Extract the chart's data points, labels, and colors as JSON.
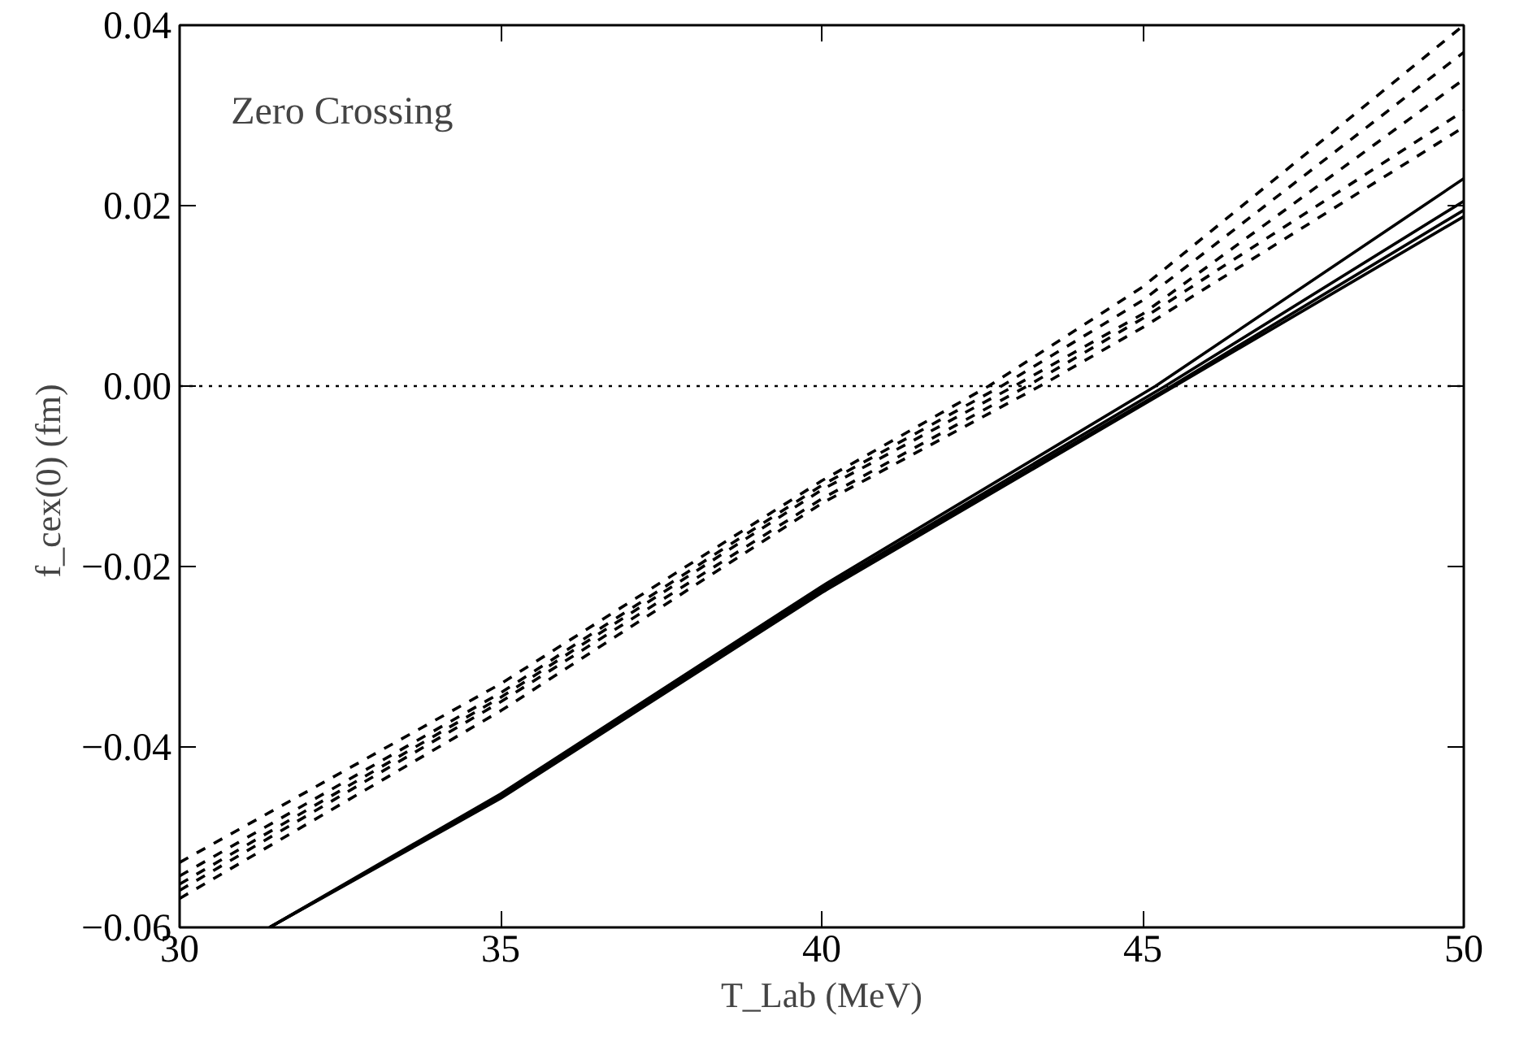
{
  "chart_data": {
    "type": "line",
    "xlabel": "T_Lab (MeV)",
    "ylabel": "f_cex(0)  (fm)",
    "annotations": [
      "Zero Crossing"
    ],
    "xlim": [
      30,
      50
    ],
    "ylim": [
      -0.06,
      0.04
    ],
    "xticks": [
      30,
      35,
      40,
      45,
      50
    ],
    "yticks": [
      {
        "value": -0.06,
        "label": "−0.06"
      },
      {
        "value": -0.04,
        "label": "−0.04"
      },
      {
        "value": -0.02,
        "label": "−0.02"
      },
      {
        "value": 0,
        "label": "0.00"
      },
      {
        "value": 0.02,
        "label": "0.02"
      },
      {
        "value": 0.04,
        "label": "0.04"
      }
    ],
    "grid": false,
    "ref_lines": [
      {
        "axis": "y",
        "value": 0,
        "label": null,
        "line_style": "dotted",
        "color": "#000000"
      }
    ],
    "series": [
      {
        "color": "#000000",
        "line_style": "dashed",
        "x": [
          30,
          35,
          40,
          42.6,
          45,
          50
        ],
        "values": [
          -0.0528,
          -0.033,
          -0.0105,
          0,
          0.011,
          0.04
        ]
      },
      {
        "color": "#000000",
        "line_style": "dashed",
        "x": [
          30,
          35,
          40,
          42.8,
          45,
          50
        ],
        "values": [
          -0.0543,
          -0.034,
          -0.011,
          0,
          0.0095,
          0.037
        ]
      },
      {
        "color": "#000000",
        "line_style": "dashed",
        "x": [
          30,
          35,
          40,
          43.0,
          45,
          50
        ],
        "values": [
          -0.0552,
          -0.0345,
          -0.0115,
          0,
          0.008,
          0.034
        ]
      },
      {
        "color": "#000000",
        "line_style": "dashed",
        "x": [
          30,
          35,
          40,
          43.2,
          45,
          50
        ],
        "values": [
          -0.0559,
          -0.035,
          -0.0125,
          0,
          0.0075,
          0.0305
        ]
      },
      {
        "color": "#000000",
        "line_style": "dashed",
        "x": [
          30,
          35,
          40,
          43.4,
          45,
          50
        ],
        "values": [
          -0.0568,
          -0.036,
          -0.013,
          0,
          0.0065,
          0.0287
        ]
      },
      {
        "color": "#000000",
        "line_style": "solid",
        "x": [
          31.4,
          35,
          40,
          45.2,
          50
        ],
        "values": [
          -0.06,
          -0.0452,
          -0.0222,
          0,
          0.023
        ]
      },
      {
        "color": "#000000",
        "line_style": "solid",
        "x": [
          31.4,
          35,
          40,
          45.35,
          50
        ],
        "values": [
          -0.06,
          -0.0454,
          -0.0225,
          0,
          0.0205
        ]
      },
      {
        "color": "#000000",
        "line_style": "solid",
        "x": [
          31.4,
          35,
          40,
          45.45,
          50
        ],
        "values": [
          -0.06,
          -0.0455,
          -0.0227,
          0,
          0.0195
        ]
      },
      {
        "color": "#000000",
        "line_style": "solid",
        "x": [
          31.4,
          35,
          40,
          45.5,
          50
        ],
        "values": [
          -0.06,
          -0.0457,
          -0.0229,
          0,
          0.0188
        ]
      }
    ]
  }
}
